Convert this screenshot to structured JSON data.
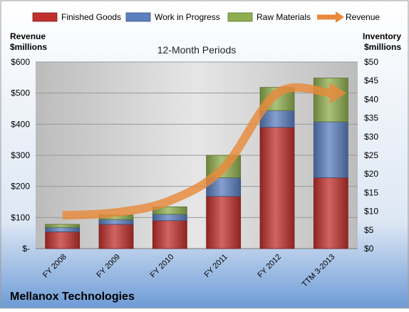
{
  "chart_data": {
    "type": "bar",
    "stacked": true,
    "title": "12-Month Periods",
    "company": "Mellanox Technologies",
    "left_axis": {
      "label_line1": "Revenue",
      "label_line2": "$millions",
      "range": [
        0,
        600
      ],
      "ticks": [
        {
          "v": 0,
          "t": "$-"
        },
        {
          "v": 100,
          "t": "$100"
        },
        {
          "v": 200,
          "t": "$200"
        },
        {
          "v": 300,
          "t": "$300"
        },
        {
          "v": 400,
          "t": "$400"
        },
        {
          "v": 500,
          "t": "$500"
        },
        {
          "v": 600,
          "t": "$600"
        }
      ]
    },
    "right_axis": {
      "label_line1": "Inventory",
      "label_line2": "$millions",
      "range": [
        0,
        50
      ],
      "ticks": [
        {
          "v": 0,
          "t": "$0"
        },
        {
          "v": 5,
          "t": "$5"
        },
        {
          "v": 10,
          "t": "$10"
        },
        {
          "v": 15,
          "t": "$15"
        },
        {
          "v": 20,
          "t": "$20"
        },
        {
          "v": 25,
          "t": "$25"
        },
        {
          "v": 30,
          "t": "$30"
        },
        {
          "v": 35,
          "t": "$35"
        },
        {
          "v": 40,
          "t": "$40"
        },
        {
          "v": 45,
          "t": "$45"
        },
        {
          "v": 50,
          "t": "$50"
        }
      ]
    },
    "categories": [
      "FY 2008",
      "FY 2009",
      "FY 2010",
      "FY 2011",
      "FY 2012",
      "TTM 3-2013"
    ],
    "series": [
      {
        "name": "Finished Goods",
        "axis": "right",
        "color": "#c0302c",
        "values": [
          4.5,
          6.5,
          7.5,
          14.0,
          32.5,
          19.0
        ]
      },
      {
        "name": "Work in Progress",
        "axis": "right",
        "color": "#5b7fbf",
        "values": [
          1.2,
          1.3,
          1.7,
          5.0,
          4.5,
          15.0
        ]
      },
      {
        "name": "Raw Materials",
        "axis": "right",
        "color": "#8fae4f",
        "values": [
          0.8,
          1.2,
          2.0,
          6.0,
          6.2,
          11.7
        ]
      }
    ],
    "line": {
      "name": "Revenue",
      "axis": "left",
      "color": "#e88a3a",
      "values": [
        107,
        116,
        154,
        259,
        500,
        500
      ]
    },
    "legend_position": "top",
    "grid": true
  }
}
